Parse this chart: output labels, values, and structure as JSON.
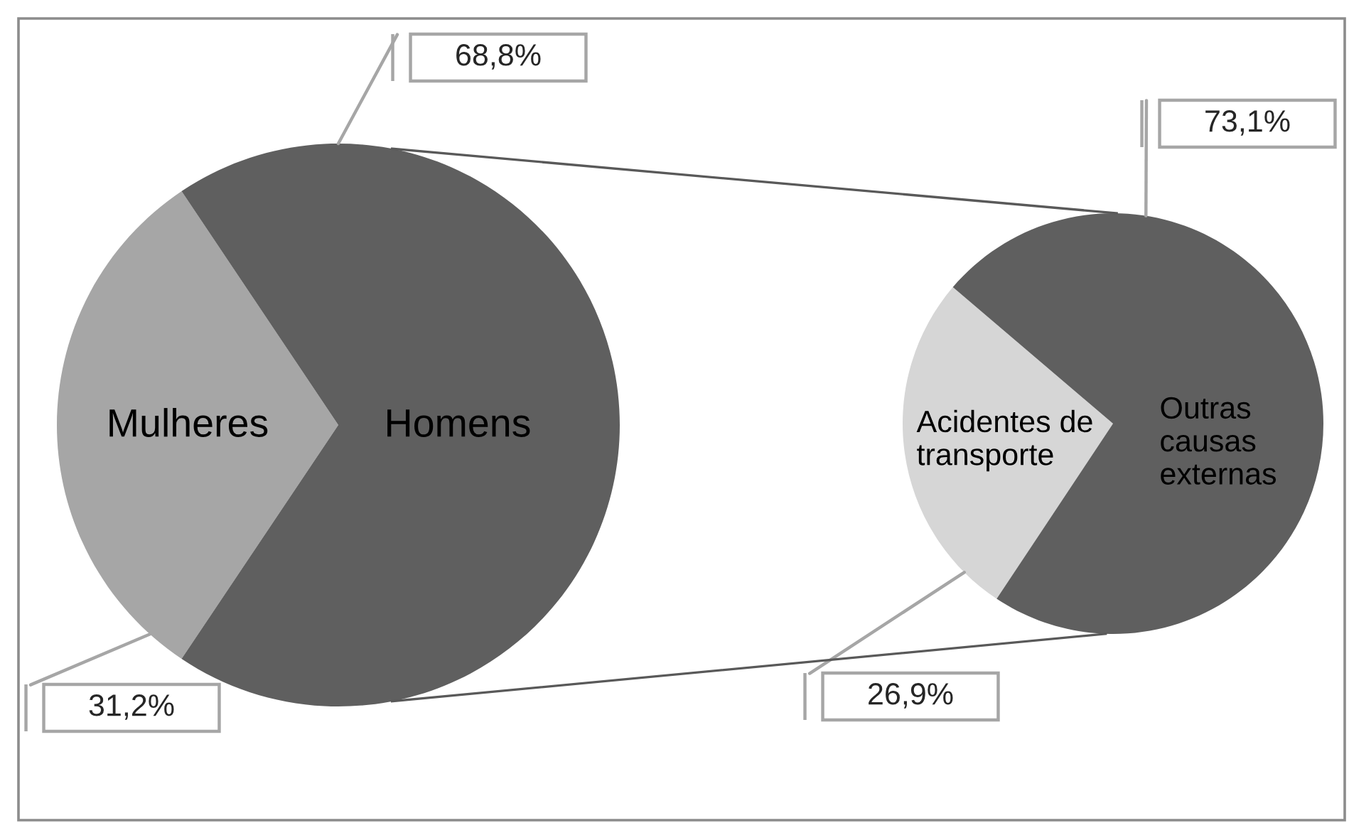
{
  "chart_data": [
    {
      "type": "pie",
      "categories": [
        "Mulheres",
        "Homens"
      ],
      "values": [
        31.2,
        68.8
      ],
      "colors": [
        "#a6a6a6",
        "#5f5f5f"
      ],
      "value_labels": [
        "31,2%",
        "68,8%"
      ]
    },
    {
      "type": "pie",
      "categories": [
        "Acidentes de\ntransporte",
        "Outras\ncausas\nexternas"
      ],
      "values": [
        26.9,
        73.1
      ],
      "colors": [
        "#d6d6d6",
        "#5f5f5f"
      ],
      "value_labels": [
        "26,9%",
        "73,1%"
      ]
    }
  ]
}
